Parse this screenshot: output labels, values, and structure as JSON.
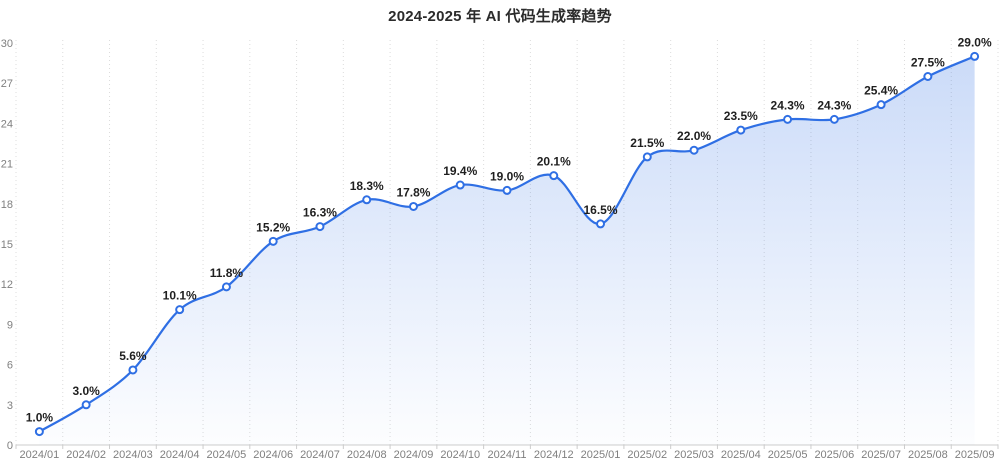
{
  "title": "2024-2025 年 AI 代码生成率趋势",
  "chart_data": {
    "type": "line",
    "title": "2024-2025 年 AI 代码生成率趋势",
    "xlabel": "",
    "ylabel": "",
    "categories": [
      "2024/01",
      "2024/02",
      "2024/03",
      "2024/04",
      "2024/05",
      "2024/06",
      "2024/07",
      "2024/08",
      "2024/09",
      "2024/10",
      "2024/11",
      "2024/12",
      "2025/01",
      "2025/02",
      "2025/03",
      "2025/04",
      "2025/05",
      "2025/06",
      "2025/07",
      "2025/08",
      "2025/09"
    ],
    "values": [
      1.0,
      3.0,
      5.6,
      10.1,
      11.8,
      15.2,
      16.3,
      18.3,
      17.8,
      19.4,
      19.0,
      20.1,
      16.5,
      21.5,
      22.0,
      23.5,
      24.3,
      24.3,
      25.4,
      27.5,
      29.0
    ],
    "value_labels": [
      "1.0%",
      "3.0%",
      "5.6%",
      "10.1%",
      "11.8%",
      "15.2%",
      "16.3%",
      "18.3%",
      "17.8%",
      "19.4%",
      "19.0%",
      "20.1%",
      "16.5%",
      "21.5%",
      "22.0%",
      "23.5%",
      "24.3%",
      "24.3%",
      "25.4%",
      "27.5%",
      "29.0%"
    ],
    "ylim": [
      0,
      30
    ],
    "y_ticks": [
      0,
      3,
      6,
      9,
      12,
      15,
      18,
      21,
      24,
      27,
      30
    ],
    "grid": "vertical-dotted",
    "smooth": true,
    "area_fill": true,
    "legend": "none",
    "colors": {
      "line": "#2f6fe4",
      "marker_fill": "#ffffff",
      "area_top": "rgba(47,111,228,0.26)",
      "area_bottom": "rgba(47,111,228,0.01)",
      "gridline": "#dcdcdc",
      "axis_line": "#cccccc",
      "axis_label": "#7f7f7f",
      "value_label": "#1f1f1f",
      "title": "#2b2b2b"
    }
  }
}
